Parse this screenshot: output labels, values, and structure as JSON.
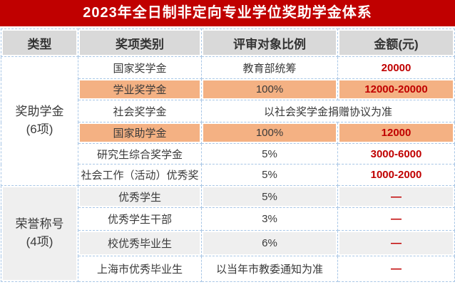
{
  "title": "2023年全日制非定向专业学位奖助学金体系",
  "colors": {
    "title_bg": "#C00000",
    "accent_red_text": "#C00000",
    "highlight_row_orange": "#F4B183",
    "header_gray": "#D9D9D9",
    "alt_row_gray": "#EFEFEF",
    "dashed_border_blue": "#A8C6E6"
  },
  "header": {
    "type": "类型",
    "category": "奖项类别",
    "ratio": "评审对象比例",
    "amount": "金额(元)"
  },
  "groups": [
    {
      "line1": "奖助学金",
      "line2": "(6项)"
    },
    {
      "line1": "荣誉称号",
      "line2": "(4项)"
    }
  ],
  "rows": [
    {
      "award": "国家奖学金",
      "ratio": "教育部统筹",
      "amount": "20000"
    },
    {
      "award": "学业奖学金",
      "ratio": "100%",
      "amount": "12000-20000"
    },
    {
      "award": "社会奖学金",
      "ratio": "以社会奖学金捐赠协议为准",
      "amount": ""
    },
    {
      "award": "国家助学金",
      "ratio": "100%",
      "amount": "12000"
    },
    {
      "award": "研究生综合奖学金",
      "ratio": "5%",
      "amount": "3000-6000"
    },
    {
      "award": "社会工作（活动）优秀奖",
      "ratio": "5%",
      "amount": "1000-2000"
    },
    {
      "award": "优秀学生",
      "ratio": "5%",
      "amount": "—"
    },
    {
      "award": "优秀学生干部",
      "ratio": "3%",
      "amount": "—"
    },
    {
      "award": "校优秀毕业生",
      "ratio": "6%",
      "amount": "—"
    },
    {
      "award": "上海市优秀毕业生",
      "ratio": "以当年市教委通知为准",
      "amount": "—"
    }
  ]
}
